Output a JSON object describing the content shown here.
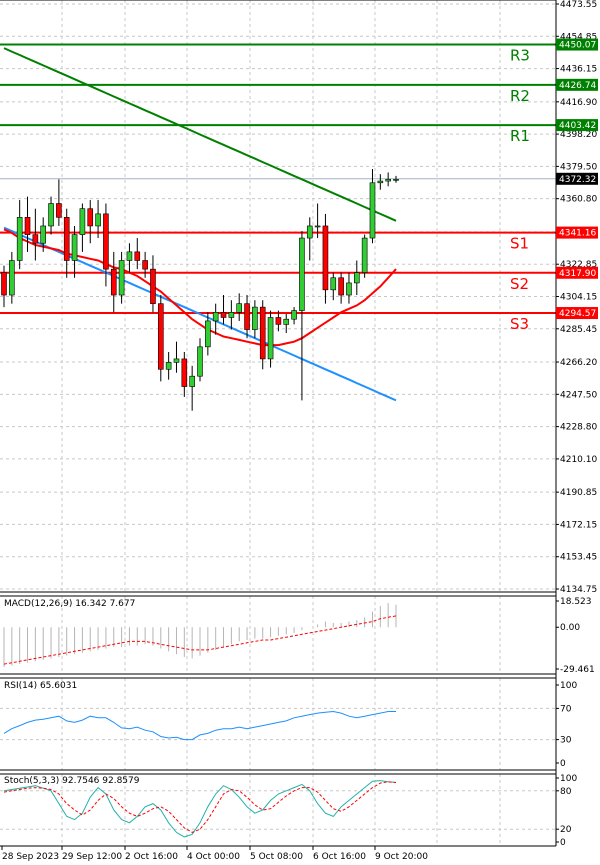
{
  "chart_data": {
    "type": "candlestick",
    "symbol_price_scale": {
      "ticks": [
        "4473.55",
        "4454.85",
        "4436.15",
        "4416.90",
        "4398.20",
        "4379.50",
        "4360.80",
        "4341.55",
        "4322.85",
        "4304.15",
        "4285.45",
        "4266.20",
        "4247.50",
        "4228.80",
        "4210.10",
        "4190.85",
        "4172.15",
        "4153.45",
        "4134.75"
      ],
      "ylim": [
        4134.75,
        4473.55
      ]
    },
    "time_axis": {
      "labels": [
        "28 Sep 2023",
        "29 Sep 12:00",
        "2 Oct 16:00",
        "4 Oct 00:00",
        "5 Oct 08:00",
        "6 Oct 16:00",
        "9 Oct 20:00"
      ]
    },
    "current_price": "4372.32",
    "levels": [
      {
        "name": "R3",
        "value": 4450.07,
        "value_label": "4450.07",
        "color": "#008000"
      },
      {
        "name": "R2",
        "value": 4426.74,
        "value_label": "4426.74",
        "color": "#008000"
      },
      {
        "name": "R1",
        "value": 4403.42,
        "value_label": "4403.42",
        "color": "#008000"
      },
      {
        "name": "S1",
        "value": 4341.16,
        "value_label": "4341.16",
        "color": "#ff0000"
      },
      {
        "name": "S2",
        "value": 4317.9,
        "value_label": "4317.90",
        "color": "#ff0000"
      },
      {
        "name": "S3",
        "value": 4294.57,
        "value_label": "4294.57",
        "color": "#ff0000"
      }
    ],
    "candles": [
      [
        4318,
        4322,
        4298,
        4305
      ],
      [
        4305,
        4330,
        4300,
        4325
      ],
      [
        4325,
        4360,
        4320,
        4350
      ],
      [
        4350,
        4362,
        4330,
        4340
      ],
      [
        4340,
        4355,
        4325,
        4335
      ],
      [
        4335,
        4350,
        4330,
        4345
      ],
      [
        4345,
        4362,
        4340,
        4358
      ],
      [
        4358,
        4372,
        4345,
        4350
      ],
      [
        4350,
        4355,
        4315,
        4325
      ],
      [
        4325,
        4345,
        4315,
        4340
      ],
      [
        4340,
        4358,
        4330,
        4355
      ],
      [
        4355,
        4360,
        4335,
        4345
      ],
      [
        4345,
        4360,
        4338,
        4352
      ],
      [
        4352,
        4358,
        4310,
        4320
      ],
      [
        4320,
        4330,
        4295,
        4305
      ],
      [
        4305,
        4330,
        4300,
        4325
      ],
      [
        4325,
        4335,
        4318,
        4330
      ],
      [
        4330,
        4338,
        4320,
        4325
      ],
      [
        4325,
        4330,
        4315,
        4320
      ],
      [
        4320,
        4328,
        4295,
        4300
      ],
      [
        4300,
        4305,
        4255,
        4262
      ],
      [
        4262,
        4272,
        4256,
        4266
      ],
      [
        4266,
        4278,
        4260,
        4268
      ],
      [
        4268,
        4272,
        4246,
        4252
      ],
      [
        4252,
        4264,
        4238,
        4258
      ],
      [
        4258,
        4280,
        4255,
        4275
      ],
      [
        4275,
        4295,
        4270,
        4290
      ],
      [
        4290,
        4300,
        4282,
        4295
      ],
      [
        4295,
        4305,
        4288,
        4292
      ],
      [
        4292,
        4302,
        4285,
        4295
      ],
      [
        4295,
        4306,
        4290,
        4300
      ],
      [
        4300,
        4305,
        4280,
        4285
      ],
      [
        4285,
        4302,
        4280,
        4298
      ],
      [
        4298,
        4302,
        4262,
        4268
      ],
      [
        4268,
        4296,
        4263,
        4292
      ],
      [
        4292,
        4296,
        4284,
        4288
      ],
      [
        4288,
        4294,
        4283,
        4291
      ],
      [
        4291,
        4298,
        4288,
        4296
      ],
      [
        4296,
        4342,
        4244,
        4338
      ],
      [
        4338,
        4350,
        4325,
        4345
      ],
      [
        4345,
        4358,
        4338,
        4345
      ],
      [
        4345,
        4352,
        4300,
        4308
      ],
      [
        4308,
        4318,
        4302,
        4315
      ],
      [
        4315,
        4318,
        4300,
        4305
      ],
      [
        4305,
        4318,
        4300,
        4312
      ],
      [
        4312,
        4325,
        4305,
        4318
      ],
      [
        4318,
        4340,
        4315,
        4338
      ],
      [
        4338,
        4378,
        4335,
        4370
      ],
      [
        4370,
        4375,
        4366,
        4371
      ],
      [
        4371,
        4376,
        4368,
        4372
      ],
      [
        4372,
        4374,
        4370,
        4372
      ]
    ],
    "moving_averages": [
      {
        "color": "#008000",
        "values": [
          4448,
          4446,
          4444,
          4442,
          4440,
          4438,
          4436,
          4434,
          4432,
          4430,
          4428,
          4426,
          4424,
          4422,
          4420,
          4418,
          4416,
          4414,
          4412,
          4410,
          4408,
          4406,
          4404,
          4402,
          4400,
          4398,
          4396,
          4394,
          4392,
          4390,
          4388,
          4386,
          4384,
          4382,
          4380,
          4378,
          4376,
          4374,
          4372,
          4370,
          4368,
          4366,
          4364,
          4362,
          4360,
          4358,
          4356,
          4354,
          4352,
          4350,
          4348
        ]
      },
      {
        "color": "#1e90ff",
        "values": [
          4344,
          4342,
          4340,
          4338,
          4336,
          4334,
          4332,
          4330,
          4328,
          4326,
          4324,
          4322,
          4320,
          4318,
          4316,
          4314,
          4312,
          4310,
          4308,
          4306,
          4304,
          4302,
          4300,
          4298,
          4296,
          4294,
          4292,
          4290,
          4288,
          4286,
          4284,
          4282,
          4280,
          4278,
          4276,
          4274,
          4272,
          4270,
          4268,
          4266,
          4264,
          4262,
          4260,
          4258,
          4256,
          4254,
          4252,
          4250,
          4248,
          4246,
          4244
        ]
      },
      {
        "color": "#ff0000",
        "values": [
          4343,
          4341,
          4338,
          4336,
          4334,
          4333,
          4332,
          4331,
          4329,
          4328,
          4327,
          4326,
          4325,
          4323,
          4321,
          4320,
          4318,
          4316,
          4313,
          4310,
          4307,
          4303,
          4299,
          4295,
          4291,
          4288,
          4285,
          4283,
          4281,
          4280,
          4279,
          4278,
          4277,
          4276,
          4276,
          4276,
          4277,
          4278,
          4280,
          4283,
          4286,
          4289,
          4292,
          4295,
          4297,
          4299,
          4302,
          4306,
          4310,
          4315,
          4320
        ]
      }
    ],
    "macd": {
      "title": "MACD(12,26,9) 16.342 7.677",
      "ticks": [
        "18.523",
        "0.00",
        "-29.461"
      ],
      "ylim": [
        -29.461,
        18.523
      ],
      "histogram": [
        -28,
        -27,
        -26,
        -25,
        -24,
        -23,
        -22,
        -21,
        -20,
        -19,
        -18,
        -17,
        -16,
        -15,
        -14,
        -14,
        -13,
        -13,
        -12,
        -13,
        -15,
        -17,
        -19,
        -21,
        -22,
        -20,
        -18,
        -16,
        -14,
        -12,
        -10,
        -9,
        -8,
        -8,
        -7,
        -6,
        -5,
        -4,
        -2,
        0,
        2,
        4,
        3,
        3,
        4,
        5,
        7,
        11,
        15,
        17,
        16
      ],
      "signal": [
        -26,
        -25,
        -24,
        -23,
        -22,
        -21,
        -20,
        -19,
        -18,
        -17,
        -16,
        -15,
        -14,
        -13,
        -12,
        -11,
        -10,
        -10,
        -10,
        -11,
        -12,
        -13,
        -14,
        -15,
        -16,
        -16,
        -16,
        -15,
        -14,
        -13,
        -12,
        -11,
        -10,
        -9,
        -9,
        -8,
        -7,
        -6,
        -5,
        -4,
        -3,
        -2,
        -1,
        0,
        1,
        2,
        3,
        4,
        6,
        7,
        8
      ]
    },
    "rsi": {
      "title": "RSI(14) 65.6031",
      "ticks": [
        "100",
        "70",
        "30",
        "0"
      ],
      "ylim": [
        0,
        100
      ],
      "values": [
        38,
        44,
        48,
        52,
        55,
        56,
        58,
        60,
        54,
        52,
        55,
        60,
        58,
        58,
        52,
        45,
        44,
        46,
        42,
        40,
        34,
        32,
        33,
        30,
        30,
        36,
        38,
        42,
        44,
        44,
        46,
        44,
        46,
        48,
        50,
        52,
        54,
        58,
        60,
        62,
        64,
        65,
        66,
        64,
        60,
        58,
        60,
        62,
        64,
        66,
        66
      ]
    },
    "stoch": {
      "title": "Stoch(5,3,3) 92.7546 92.8579",
      "ticks": [
        "100",
        "80",
        "20",
        "0"
      ],
      "ylim": [
        0,
        100
      ],
      "main": [
        80,
        82,
        84,
        86,
        88,
        84,
        80,
        60,
        40,
        35,
        45,
        70,
        85,
        75,
        50,
        35,
        30,
        40,
        55,
        60,
        50,
        30,
        15,
        8,
        12,
        30,
        55,
        75,
        88,
        82,
        70,
        55,
        45,
        50,
        65,
        75,
        80,
        85,
        90,
        80,
        60,
        45,
        40,
        55,
        65,
        75,
        85,
        95,
        96,
        94,
        93
      ],
      "signal": [
        78,
        80,
        82,
        84,
        85,
        84,
        82,
        75,
        60,
        50,
        42,
        50,
        65,
        75,
        68,
        55,
        45,
        40,
        45,
        52,
        55,
        48,
        35,
        22,
        15,
        20,
        35,
        55,
        75,
        82,
        80,
        70,
        58,
        50,
        52,
        62,
        72,
        80,
        85,
        85,
        78,
        65,
        52,
        48,
        55,
        65,
        75,
        85,
        92,
        94,
        93
      ]
    }
  }
}
